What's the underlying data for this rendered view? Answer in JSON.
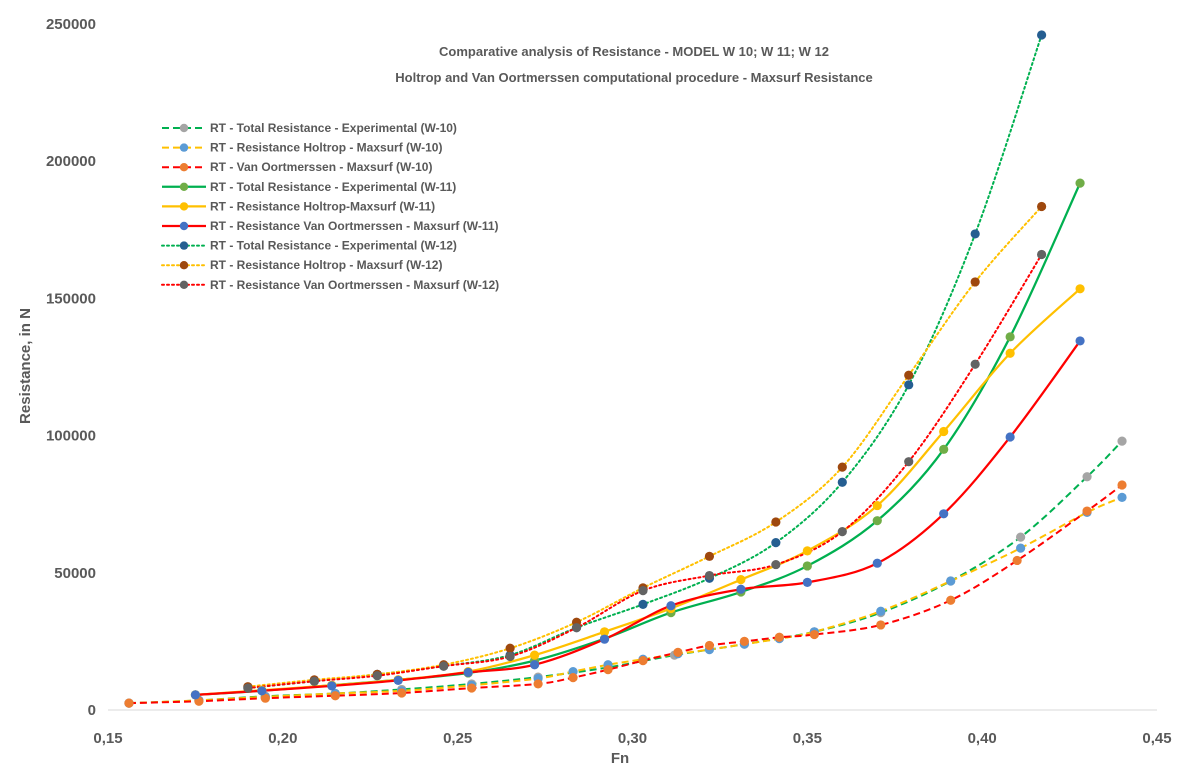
{
  "chart_data": {
    "type": "line",
    "title": "Comparative analysis of Resistance - MODEL W 10; W 11; W 12",
    "subtitle": "Holtrop and Van Oortmerssen computational procedure - Maxsurf Resistance",
    "xlabel": "Fn",
    "ylabel": "Resistance, in N",
    "xlim": [
      0.15,
      0.45
    ],
    "ylim": [
      0,
      250000
    ],
    "x_ticks": [
      "0,15",
      "0,20",
      "0,25",
      "0,30",
      "0,35",
      "0,40",
      "0,45"
    ],
    "y_ticks": [
      "0",
      "50000",
      "100000",
      "150000",
      "200000",
      "250000"
    ],
    "grid": false,
    "legend_position": "top-left",
    "series": [
      {
        "name": "RT - Total Resistance - Experimental (W-10)",
        "color": "#a5a5a5",
        "line_color": "#00b050",
        "dash": "dashed",
        "x": [
          0.156,
          0.176,
          0.195,
          0.215,
          0.234,
          0.254,
          0.273,
          0.293,
          0.312,
          0.332,
          0.352,
          0.371,
          0.391,
          0.411,
          0.43,
          0.44
        ],
        "y": [
          2500,
          3500,
          5000,
          6000,
          7500,
          9500,
          12000,
          15500,
          20000,
          24000,
          28500,
          35500,
          47000,
          63000,
          85000,
          98000
        ]
      },
      {
        "name": "RT - Resistance Holtrop - Maxsurf (W-10)",
        "color": "#5b9bd5",
        "line_color": "#ffc000",
        "dash": "dashed",
        "x": [
          0.156,
          0.176,
          0.195,
          0.215,
          0.234,
          0.254,
          0.273,
          0.283,
          0.293,
          0.303,
          0.313,
          0.322,
          0.332,
          0.342,
          0.352,
          0.371,
          0.391,
          0.411,
          0.43,
          0.44
        ],
        "y": [
          2500,
          3500,
          4800,
          6000,
          7000,
          9000,
          11500,
          14000,
          16500,
          18500,
          20500,
          22000,
          24000,
          26000,
          28500,
          36000,
          47000,
          59000,
          72000,
          77500
        ]
      },
      {
        "name": "RT - Van Oortmerssen - Maxsurf (W-10)",
        "color": "#ed7d31",
        "line_color": "#ff0000",
        "dash": "dashed",
        "x": [
          0.156,
          0.176,
          0.195,
          0.215,
          0.234,
          0.254,
          0.273,
          0.283,
          0.293,
          0.303,
          0.313,
          0.322,
          0.332,
          0.342,
          0.352,
          0.371,
          0.391,
          0.41,
          0.43,
          0.44
        ],
        "y": [
          2500,
          3200,
          4300,
          5200,
          6200,
          8000,
          9500,
          11800,
          14700,
          18000,
          21000,
          23500,
          25000,
          26500,
          27500,
          31000,
          40000,
          54500,
          72500,
          82000
        ]
      },
      {
        "name": "RT - Total Resistance - Experimental (W-11)",
        "color": "#70ad47",
        "line_color": "#00b050",
        "dash": "solid",
        "x": [
          0.175,
          0.194,
          0.214,
          0.233,
          0.253,
          0.272,
          0.292,
          0.311,
          0.331,
          0.35,
          0.37,
          0.389,
          0.408,
          0.428
        ],
        "y": [
          5500,
          7000,
          9000,
          11000,
          13500,
          18000,
          26000,
          35500,
          43000,
          52500,
          69000,
          95000,
          136000,
          192000
        ]
      },
      {
        "name": "RT - Resistance Holtrop-Maxsurf (W-11)",
        "color": "#ffc000",
        "line_color": "#ffc000",
        "dash": "solid",
        "x": [
          0.175,
          0.194,
          0.214,
          0.233,
          0.253,
          0.272,
          0.292,
          0.311,
          0.331,
          0.35,
          0.37,
          0.389,
          0.408,
          0.428
        ],
        "y": [
          5500,
          7200,
          9000,
          11000,
          14000,
          20000,
          28500,
          37000,
          47500,
          58000,
          74500,
          101500,
          130000,
          153500
        ]
      },
      {
        "name": "RT - Resistance Van Oortmerssen - Maxsurf (W-11)",
        "color": "#4472c4",
        "line_color": "#ff0000",
        "dash": "solid",
        "x": [
          0.175,
          0.194,
          0.214,
          0.233,
          0.253,
          0.272,
          0.292,
          0.311,
          0.331,
          0.35,
          0.37,
          0.389,
          0.408,
          0.428
        ],
        "y": [
          5500,
          7000,
          8800,
          10800,
          13700,
          16500,
          25800,
          38000,
          44000,
          46500,
          53500,
          71500,
          99500,
          134500
        ]
      },
      {
        "name": "RT - Total Resistance - Experimental (W-12)",
        "color": "#255e91",
        "line_color": "#00b050",
        "dash": "dotted",
        "x": [
          0.19,
          0.209,
          0.227,
          0.246,
          0.265,
          0.284,
          0.303,
          0.322,
          0.341,
          0.36,
          0.379,
          0.398,
          0.417
        ],
        "y": [
          8000,
          10500,
          13000,
          16000,
          20000,
          30000,
          38500,
          48000,
          61000,
          83000,
          118500,
          173500,
          246000
        ]
      },
      {
        "name": "RT - Resistance Holtrop - Maxsurf (W-12)",
        "color": "#9e480e",
        "line_color": "#ffc000",
        "dash": "dotted",
        "x": [
          0.19,
          0.209,
          0.227,
          0.246,
          0.265,
          0.284,
          0.303,
          0.322,
          0.341,
          0.36,
          0.379,
          0.398,
          0.417
        ],
        "y": [
          8500,
          11000,
          13000,
          16500,
          22500,
          32000,
          44500,
          56000,
          68500,
          88500,
          122000,
          156000,
          183500
        ]
      },
      {
        "name": "RT - Resistance Van Oortmerssen - Maxsurf (W-12)",
        "color": "#636363",
        "line_color": "#ff0000",
        "dash": "dotted",
        "x": [
          0.19,
          0.209,
          0.227,
          0.246,
          0.265,
          0.284,
          0.303,
          0.322,
          0.341,
          0.36,
          0.379,
          0.398,
          0.417
        ],
        "y": [
          8000,
          10500,
          12500,
          16000,
          19500,
          30000,
          43500,
          49000,
          53000,
          65000,
          90500,
          126000,
          166000
        ]
      }
    ]
  }
}
